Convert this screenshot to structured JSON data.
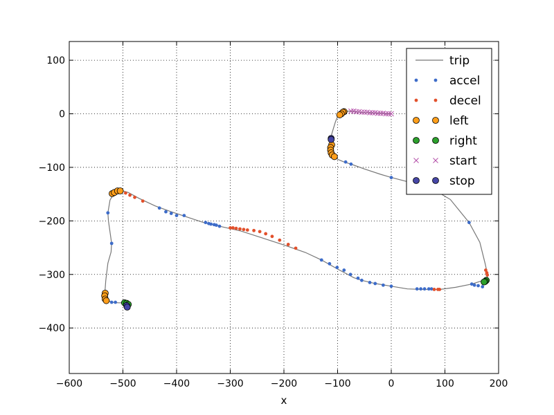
{
  "chart_data": {
    "type": "scatter",
    "title": "",
    "xlabel": "x",
    "ylabel": "",
    "xlim": [
      -600,
      200
    ],
    "ylim": [
      -485,
      135
    ],
    "xticks": [
      -600,
      -500,
      -400,
      -300,
      -200,
      -100,
      0,
      100,
      200
    ],
    "yticks": [
      100,
      0,
      -100,
      -200,
      -300,
      -400
    ],
    "xtick_labels": [
      "−600",
      "−500",
      "−400",
      "−300",
      "−200",
      "−100",
      "0",
      "100",
      "200"
    ],
    "ytick_labels": [
      "100",
      "0",
      "−100",
      "−200",
      "−300",
      "−400"
    ],
    "grid": true,
    "legend_position": "top-right",
    "colors": {
      "trip": "#777777",
      "accel": "#3d6cc9",
      "decel": "#e2502b",
      "left": "#ff9e1a",
      "right": "#2ca02c",
      "start": "#b34ca8",
      "stop": "#4646a6"
    },
    "series": [
      {
        "name": "trip",
        "kind": "line",
        "points": [
          [
            0,
            0
          ],
          [
            -10,
            0
          ],
          [
            -20,
            1
          ],
          [
            -30,
            1
          ],
          [
            -40,
            2
          ],
          [
            -50,
            2
          ],
          [
            -60,
            3
          ],
          [
            -70,
            4
          ],
          [
            -80,
            5
          ],
          [
            -90,
            4
          ],
          [
            -96,
            -1
          ],
          [
            -100,
            -5
          ],
          [
            -104,
            -15
          ],
          [
            -108,
            -28
          ],
          [
            -111,
            -38
          ],
          [
            -112,
            -47
          ],
          [
            -113,
            -56
          ],
          [
            -113,
            -64
          ],
          [
            -112,
            -72
          ],
          [
            -109,
            -78
          ],
          [
            -104,
            -83
          ],
          [
            -95,
            -87
          ],
          [
            -88,
            -90
          ],
          [
            -75,
            -94
          ],
          [
            -50,
            -103
          ],
          [
            -20,
            -113
          ],
          [
            0,
            -119
          ],
          [
            50,
            -132
          ],
          [
            80,
            -142
          ],
          [
            110,
            -160
          ],
          [
            145,
            -203
          ],
          [
            165,
            -240
          ],
          [
            175,
            -280
          ],
          [
            180,
            -303
          ],
          [
            175,
            -310
          ],
          [
            150,
            -318
          ],
          [
            120,
            -324
          ],
          [
            90,
            -328
          ],
          [
            60,
            -328
          ],
          [
            30,
            -327
          ],
          [
            0,
            -322
          ],
          [
            -30,
            -317
          ],
          [
            -55,
            -311
          ],
          [
            -70,
            -306
          ],
          [
            -100,
            -290
          ],
          [
            -130,
            -273
          ],
          [
            -160,
            -259
          ],
          [
            -200,
            -245
          ],
          [
            -240,
            -232
          ],
          [
            -280,
            -219
          ],
          [
            -320,
            -210
          ],
          [
            -350,
            -203
          ],
          [
            -380,
            -193
          ],
          [
            -410,
            -183
          ],
          [
            -440,
            -172
          ],
          [
            -470,
            -158
          ],
          [
            -490,
            -147
          ],
          [
            -500,
            -144
          ],
          [
            -510,
            -146
          ],
          [
            -518,
            -151
          ],
          [
            -524,
            -161
          ],
          [
            -528,
            -185
          ],
          [
            -527,
            -200
          ],
          [
            -521,
            -242
          ],
          [
            -522,
            -258
          ],
          [
            -528,
            -279
          ],
          [
            -532,
            -312
          ],
          [
            -534,
            -339
          ],
          [
            -530,
            -347
          ],
          [
            -521,
            -352
          ],
          [
            -508,
            -353
          ],
          [
            -496,
            -353
          ],
          [
            -493,
            -357
          ],
          [
            -492,
            -362
          ]
        ]
      },
      {
        "name": "accel",
        "kind": "dot",
        "points": [
          [
            -85,
            -90
          ],
          [
            -75,
            -94
          ],
          [
            0,
            -119
          ],
          [
            145,
            -203
          ],
          [
            -346,
            -203
          ],
          [
            -340,
            -205
          ],
          [
            -336,
            -206
          ],
          [
            -330,
            -207
          ],
          [
            -326,
            -208
          ],
          [
            -320,
            -210
          ],
          [
            -386,
            -190
          ],
          [
            -400,
            -190
          ],
          [
            -410,
            -186
          ],
          [
            -420,
            -183
          ],
          [
            -432,
            -176
          ],
          [
            -130,
            -273
          ],
          [
            -115,
            -280
          ],
          [
            -101,
            -287
          ],
          [
            -88,
            -292
          ],
          [
            -76,
            -300
          ],
          [
            -62,
            -307
          ],
          [
            -55,
            -311
          ],
          [
            -40,
            -315
          ],
          [
            -30,
            -317
          ],
          [
            -15,
            -320
          ],
          [
            0,
            -322
          ],
          [
            48,
            -327
          ],
          [
            55,
            -327
          ],
          [
            62,
            -327
          ],
          [
            70,
            -327
          ],
          [
            75,
            -327
          ],
          [
            150,
            -318
          ],
          [
            155,
            -320
          ],
          [
            162,
            -321
          ],
          [
            170,
            -323
          ],
          [
            -528,
            -185
          ],
          [
            -521,
            -242
          ],
          [
            -530,
            -351
          ],
          [
            -521,
            -352
          ],
          [
            -514,
            -352
          ]
        ]
      },
      {
        "name": "decel",
        "kind": "dot",
        "points": [
          [
            -300,
            -213
          ],
          [
            -295,
            -213
          ],
          [
            -289,
            -214
          ],
          [
            -282,
            -215
          ],
          [
            -275,
            -216
          ],
          [
            -268,
            -217
          ],
          [
            -256,
            -218
          ],
          [
            -245,
            -220
          ],
          [
            -234,
            -224
          ],
          [
            -222,
            -229
          ],
          [
            -208,
            -236
          ],
          [
            -192,
            -244
          ],
          [
            -178,
            -251
          ],
          [
            -495,
            -148
          ],
          [
            -487,
            -152
          ],
          [
            -478,
            -156
          ],
          [
            -463,
            -163
          ],
          [
            80,
            -328
          ],
          [
            87,
            -328
          ],
          [
            90,
            -328
          ],
          [
            176,
            -292
          ],
          [
            178,
            -297
          ],
          [
            179,
            -301
          ]
        ]
      },
      {
        "name": "left",
        "kind": "circle",
        "points": [
          [
            -88,
            4
          ],
          [
            -90,
            3
          ],
          [
            -93,
            0
          ],
          [
            -96,
            -2
          ],
          [
            -111,
            -58
          ],
          [
            -113,
            -63
          ],
          [
            -113,
            -68
          ],
          [
            -112,
            -73
          ],
          [
            -110,
            -77
          ],
          [
            -106,
            -80
          ],
          [
            -520,
            -149
          ],
          [
            -516,
            -147
          ],
          [
            -510,
            -144
          ],
          [
            -505,
            -144
          ],
          [
            -533,
            -335
          ],
          [
            -534,
            -340
          ],
          [
            -533,
            -346
          ],
          [
            -531,
            -349
          ]
        ]
      },
      {
        "name": "right",
        "kind": "circle",
        "points": [
          [
            177,
            -311
          ],
          [
            175,
            -313
          ],
          [
            173,
            -314
          ],
          [
            -497,
            -353
          ],
          [
            -493,
            -354
          ],
          [
            -490,
            -356
          ]
        ]
      },
      {
        "name": "start",
        "kind": "x",
        "points": [
          [
            -75,
            5
          ],
          [
            -70,
            5
          ],
          [
            -65,
            4
          ],
          [
            -60,
            4
          ],
          [
            -55,
            3
          ],
          [
            -50,
            3
          ],
          [
            -45,
            3
          ],
          [
            -40,
            2
          ],
          [
            -35,
            2
          ],
          [
            -30,
            2
          ],
          [
            -25,
            1
          ],
          [
            -20,
            1
          ],
          [
            -15,
            1
          ],
          [
            -10,
            0
          ],
          [
            -5,
            0
          ],
          [
            0,
            0
          ]
        ]
      },
      {
        "name": "stop",
        "kind": "circle",
        "points": [
          [
            -112,
            -46
          ],
          [
            -112,
            -48
          ],
          [
            -493,
            -358
          ],
          [
            -492,
            -361
          ]
        ]
      }
    ]
  }
}
